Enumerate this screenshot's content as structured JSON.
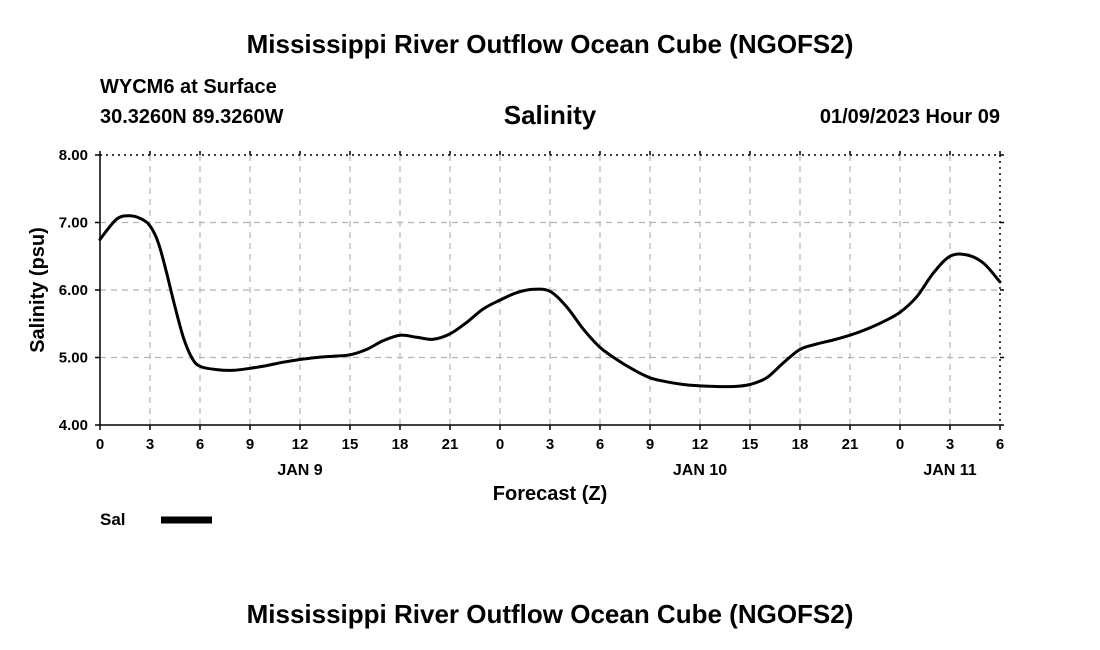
{
  "header": {
    "title": "Mississippi River Outflow Ocean Cube (NGOFS2)",
    "station": "WYCM6 at Surface",
    "coordinates": "30.3260N  89.3260W",
    "variable": "Salinity",
    "run_time": "01/09/2023 Hour 09"
  },
  "footer": {
    "title": "Mississippi River Outflow Ocean Cube (NGOFS2)"
  },
  "chart_data": {
    "type": "line",
    "title": "Salinity",
    "xlabel": "Forecast (Z)",
    "ylabel": "Salinity (psu)",
    "xlim": [
      0,
      54
    ],
    "ylim": [
      4.0,
      8.0
    ],
    "x_ticks": [
      0,
      3,
      6,
      9,
      12,
      15,
      18,
      21,
      24,
      27,
      30,
      33,
      36,
      39,
      42,
      45,
      48,
      51,
      54
    ],
    "x_tick_labels": [
      "0",
      "3",
      "6",
      "9",
      "12",
      "15",
      "18",
      "21",
      "0",
      "3",
      "6",
      "9",
      "12",
      "15",
      "18",
      "21",
      "0",
      "3",
      "6"
    ],
    "y_ticks": [
      4.0,
      5.0,
      6.0,
      7.0,
      8.0
    ],
    "y_tick_labels": [
      "4.00",
      "5.00",
      "6.00",
      "7.00",
      "8.00"
    ],
    "day_labels": [
      {
        "x": 12,
        "label": "JAN 9"
      },
      {
        "x": 36,
        "label": "JAN 10"
      },
      {
        "x": 51,
        "label": "JAN 11"
      }
    ],
    "grid": true,
    "legend": {
      "placement": "bottom-left",
      "entries": [
        "Sal"
      ]
    },
    "series": [
      {
        "name": "Sal",
        "x": [
          0,
          1,
          1.8,
          2.5,
          3,
          3.5,
          4,
          4.5,
          5,
          5.5,
          6,
          7,
          8,
          9,
          10,
          11,
          12,
          13,
          14,
          15,
          16,
          17,
          18,
          19,
          20,
          21,
          22,
          23,
          24,
          25,
          26,
          27,
          28,
          29,
          30,
          31,
          32,
          33,
          34,
          35,
          36,
          37,
          38,
          39,
          40,
          41,
          42,
          43,
          44,
          45,
          46,
          47,
          48,
          49,
          50,
          51,
          52,
          53,
          54
        ],
        "values": [
          6.75,
          7.05,
          7.1,
          7.05,
          6.95,
          6.7,
          6.25,
          5.75,
          5.3,
          5.0,
          4.87,
          4.82,
          4.81,
          4.84,
          4.88,
          4.93,
          4.97,
          5.0,
          5.02,
          5.04,
          5.12,
          5.25,
          5.33,
          5.3,
          5.27,
          5.35,
          5.52,
          5.72,
          5.85,
          5.96,
          6.01,
          5.98,
          5.75,
          5.42,
          5.15,
          4.97,
          4.82,
          4.7,
          4.64,
          4.6,
          4.58,
          4.57,
          4.57,
          4.6,
          4.7,
          4.92,
          5.12,
          5.2,
          5.26,
          5.33,
          5.42,
          5.53,
          5.67,
          5.9,
          6.25,
          6.5,
          6.52,
          6.4,
          6.12
        ]
      }
    ]
  }
}
